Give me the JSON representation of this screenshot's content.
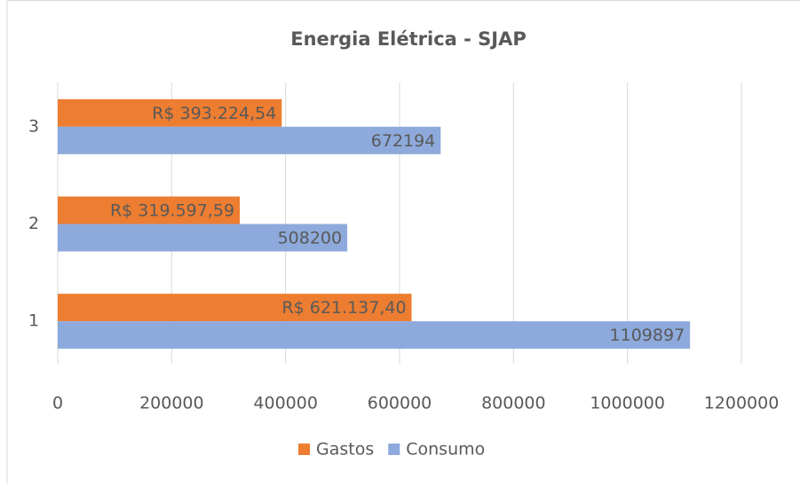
{
  "chart_data": {
    "type": "bar",
    "orientation": "horizontal",
    "title": "Energia Elétrica - SJAP",
    "categories": [
      "1",
      "2",
      "3"
    ],
    "series": [
      {
        "name": "Gastos",
        "color": "#ed7d31",
        "values": [
          621137.4,
          319597.59,
          393224.54
        ],
        "value_labels": [
          "R$ 621.137,40",
          "R$ 319.597,59",
          "R$ 393.224,54"
        ]
      },
      {
        "name": "Consumo",
        "color": "#8eaadc",
        "values": [
          1109897,
          508200,
          672194
        ]
      }
    ],
    "xlim": [
      0,
      1200000
    ],
    "xticks": [
      0,
      200000,
      400000,
      600000,
      800000,
      1000000,
      1200000
    ],
    "grid": true,
    "legend": "bottom"
  }
}
